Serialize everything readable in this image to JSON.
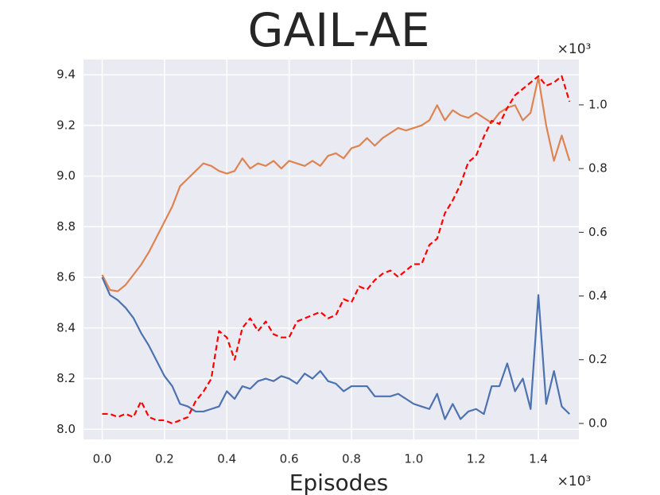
{
  "chart_data": {
    "type": "line",
    "title": "GAIL-AE",
    "x_label": "Episodes",
    "x_offset_label": "×10³",
    "y2_offset_label": "×10³",
    "x": [
      0.0,
      0.025,
      0.05,
      0.075,
      0.1,
      0.125,
      0.15,
      0.175,
      0.2,
      0.225,
      0.25,
      0.275,
      0.3,
      0.325,
      0.35,
      0.375,
      0.4,
      0.425,
      0.45,
      0.475,
      0.5,
      0.525,
      0.55,
      0.575,
      0.6,
      0.625,
      0.65,
      0.675,
      0.7,
      0.725,
      0.75,
      0.775,
      0.8,
      0.825,
      0.85,
      0.875,
      0.9,
      0.925,
      0.95,
      0.975,
      1.0,
      1.025,
      1.05,
      1.075,
      1.1,
      1.125,
      1.15,
      1.175,
      1.2,
      1.225,
      1.25,
      1.275,
      1.3,
      1.325,
      1.35,
      1.375,
      1.4,
      1.425,
      1.45,
      1.475,
      1.5
    ],
    "series": [
      {
        "color": "#dd8452",
        "dash": false,
        "axis": "y",
        "values": [
          8.61,
          8.55,
          8.545,
          8.57,
          8.61,
          8.65,
          8.7,
          8.76,
          8.82,
          8.88,
          8.96,
          8.99,
          9.02,
          9.05,
          9.04,
          9.02,
          9.01,
          9.02,
          9.07,
          9.03,
          9.05,
          9.04,
          9.06,
          9.03,
          9.06,
          9.05,
          9.04,
          9.06,
          9.04,
          9.08,
          9.09,
          9.07,
          9.11,
          9.12,
          9.15,
          9.12,
          9.15,
          9.17,
          9.19,
          9.18,
          9.19,
          9.2,
          9.22,
          9.28,
          9.22,
          9.26,
          9.24,
          9.23,
          9.25,
          9.23,
          9.21,
          9.25,
          9.27,
          9.28,
          9.22,
          9.25,
          9.39,
          9.2,
          9.06,
          9.16,
          9.06
        ]
      },
      {
        "color": "#4c72b0",
        "dash": false,
        "axis": "y",
        "values": [
          8.6,
          8.53,
          8.51,
          8.48,
          8.44,
          8.38,
          8.33,
          8.27,
          8.21,
          8.17,
          8.1,
          8.09,
          8.07,
          8.07,
          8.08,
          8.09,
          8.15,
          8.12,
          8.17,
          8.16,
          8.19,
          8.2,
          8.19,
          8.21,
          8.2,
          8.18,
          8.22,
          8.2,
          8.23,
          8.19,
          8.18,
          8.15,
          8.17,
          8.17,
          8.17,
          8.13,
          8.13,
          8.13,
          8.14,
          8.12,
          8.1,
          8.09,
          8.08,
          8.14,
          8.04,
          8.1,
          8.04,
          8.07,
          8.08,
          8.06,
          8.17,
          8.17,
          8.26,
          8.15,
          8.2,
          8.08,
          8.53,
          8.1,
          8.23,
          8.09,
          8.06
        ]
      },
      {
        "color": "#ff0000",
        "dash": true,
        "axis": "y2",
        "values": [
          0.03,
          0.03,
          0.02,
          0.03,
          0.02,
          0.07,
          0.02,
          0.01,
          0.01,
          0.0,
          0.01,
          0.02,
          0.07,
          0.1,
          0.14,
          0.29,
          0.27,
          0.2,
          0.3,
          0.33,
          0.29,
          0.32,
          0.28,
          0.27,
          0.27,
          0.32,
          0.33,
          0.34,
          0.35,
          0.33,
          0.34,
          0.39,
          0.38,
          0.43,
          0.42,
          0.45,
          0.47,
          0.48,
          0.46,
          0.48,
          0.5,
          0.5,
          0.56,
          0.58,
          0.66,
          0.7,
          0.75,
          0.82,
          0.84,
          0.9,
          0.95,
          0.94,
          0.99,
          1.03,
          1.05,
          1.07,
          1.09,
          1.06,
          1.07,
          1.09,
          1.01
        ]
      }
    ],
    "xlim": [
      -0.06,
      1.53
    ],
    "xticks": [
      {
        "value": 0,
        "label": "0.0"
      },
      0.2,
      0.4,
      0.6,
      0.8,
      {
        "value": 1,
        "label": "1.0"
      },
      1.2,
      1.4
    ],
    "ylim": [
      7.96,
      9.46
    ],
    "yticks": [
      {
        "value": 8,
        "label": "8.0"
      },
      8.2,
      8.4,
      8.6,
      8.8,
      {
        "value": 9,
        "label": "9.0"
      },
      9.2,
      9.4
    ],
    "y2lim": [
      -0.05,
      1.142
    ],
    "y2ticks": [
      {
        "value": 0,
        "label": "0.0"
      },
      0.2,
      0.4,
      0.6,
      0.8,
      {
        "value": 1,
        "label": "1.0"
      }
    ],
    "grid": true,
    "background": "#eaeaf2"
  }
}
